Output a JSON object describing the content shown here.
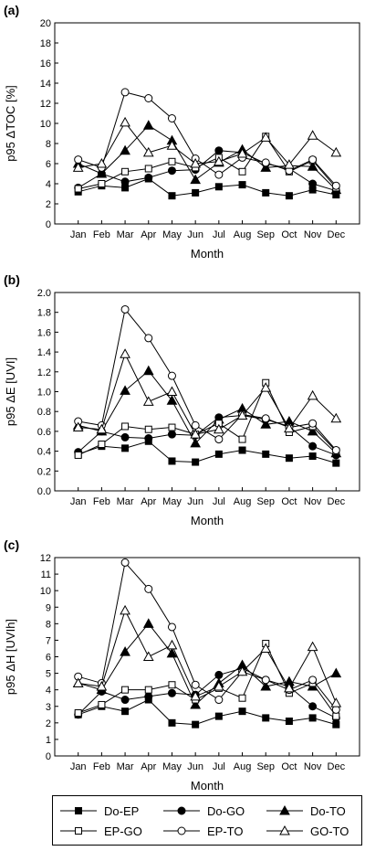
{
  "chart_data": [
    {
      "type": "line",
      "panel_label": "(a)",
      "ylabel": "p95 ΔTOC [%]",
      "xlabel": "Month",
      "categories": [
        "Jan",
        "Feb",
        "Mar",
        "Apr",
        "May",
        "Jun",
        "Jul",
        "Aug",
        "Sep",
        "Oct",
        "Nov",
        "Dec"
      ],
      "ylim": [
        0,
        20
      ],
      "yticks": [
        "0",
        "2",
        "4",
        "6",
        "8",
        "10",
        "12",
        "14",
        "16",
        "18",
        "20"
      ],
      "series": [
        {
          "name": "Do-EP",
          "values": [
            3.2,
            3.8,
            3.6,
            4.5,
            2.8,
            3.1,
            3.7,
            3.9,
            3.1,
            2.8,
            3.4,
            2.9
          ]
        },
        {
          "name": "Do-GO",
          "values": [
            3.6,
            5.0,
            4.2,
            4.6,
            5.3,
            5.4,
            7.3,
            7.1,
            6.0,
            5.5,
            4.0,
            3.3
          ]
        },
        {
          "name": "Do-TO",
          "values": [
            6.0,
            5.0,
            7.3,
            9.8,
            8.3,
            4.4,
            6.1,
            7.4,
            5.6,
            5.8,
            5.7,
            3.4
          ]
        },
        {
          "name": "EP-GO",
          "values": [
            3.5,
            4.0,
            5.2,
            5.5,
            6.2,
            5.6,
            6.6,
            5.2,
            8.7,
            5.2,
            6.3,
            3.6
          ]
        },
        {
          "name": "EP-TO",
          "values": [
            6.4,
            5.6,
            13.1,
            12.5,
            10.5,
            6.5,
            4.9,
            6.6,
            6.1,
            5.3,
            6.4,
            3.8
          ]
        },
        {
          "name": "GO-TO",
          "values": [
            5.6,
            6.0,
            10.1,
            7.1,
            7.8,
            6.0,
            6.2,
            7.0,
            8.6,
            5.9,
            8.8,
            7.1
          ]
        }
      ]
    },
    {
      "type": "line",
      "panel_label": "(b)",
      "ylabel": "p95 ΔE [UVI]",
      "xlabel": "Month",
      "categories": [
        "Jan",
        "Feb",
        "Mar",
        "Apr",
        "May",
        "Jun",
        "Jul",
        "Aug",
        "Sep",
        "Oct",
        "Nov",
        "Dec"
      ],
      "ylim": [
        0,
        2.0
      ],
      "yticks": [
        "0.0",
        "0.2",
        "0.4",
        "0.6",
        "0.8",
        "1.0",
        "1.2",
        "1.4",
        "1.6",
        "1.8",
        "2.0"
      ],
      "series": [
        {
          "name": "Do-EP",
          "values": [
            0.37,
            0.45,
            0.43,
            0.5,
            0.3,
            0.29,
            0.37,
            0.41,
            0.37,
            0.33,
            0.35,
            0.28
          ]
        },
        {
          "name": "Do-GO",
          "values": [
            0.39,
            0.6,
            0.54,
            0.53,
            0.57,
            0.56,
            0.74,
            0.76,
            0.72,
            0.65,
            0.45,
            0.36
          ]
        },
        {
          "name": "Do-TO",
          "values": [
            0.66,
            0.6,
            1.01,
            1.21,
            0.91,
            0.48,
            0.72,
            0.83,
            0.67,
            0.7,
            0.6,
            0.38
          ]
        },
        {
          "name": "EP-GO",
          "values": [
            0.36,
            0.47,
            0.65,
            0.62,
            0.64,
            0.57,
            0.68,
            0.52,
            1.09,
            0.59,
            0.65,
            0.4
          ]
        },
        {
          "name": "EP-TO",
          "values": [
            0.7,
            0.66,
            1.83,
            1.54,
            1.16,
            0.66,
            0.52,
            0.77,
            0.73,
            0.64,
            0.68,
            0.41
          ]
        },
        {
          "name": "GO-TO",
          "values": [
            0.64,
            0.62,
            1.38,
            0.9,
            1.0,
            0.57,
            0.62,
            0.76,
            1.04,
            0.63,
            0.96,
            0.73
          ]
        }
      ]
    },
    {
      "type": "line",
      "panel_label": "(c)",
      "ylabel": "p95 ΔH [UVIh]",
      "xlabel": "Month",
      "categories": [
        "Jan",
        "Feb",
        "Mar",
        "Apr",
        "May",
        "Jun",
        "Jul",
        "Aug",
        "Sep",
        "Oct",
        "Nov",
        "Dec"
      ],
      "ylim": [
        0,
        12
      ],
      "yticks": [
        "0",
        "1",
        "2",
        "3",
        "4",
        "5",
        "6",
        "7",
        "8",
        "9",
        "10",
        "11",
        "12"
      ],
      "series": [
        {
          "name": "Do-EP",
          "values": [
            2.5,
            3.0,
            2.7,
            3.4,
            2.0,
            1.9,
            2.4,
            2.7,
            2.3,
            2.1,
            2.3,
            1.9
          ]
        },
        {
          "name": "Do-GO",
          "values": [
            2.5,
            3.9,
            3.4,
            3.6,
            3.8,
            3.7,
            4.9,
            5.3,
            4.6,
            4.2,
            3.0,
            2.3
          ]
        },
        {
          "name": "Do-TO",
          "values": [
            4.4,
            4.0,
            6.3,
            8.0,
            6.2,
            3.1,
            4.4,
            5.5,
            4.2,
            4.5,
            4.2,
            5.0
          ]
        },
        {
          "name": "EP-GO",
          "values": [
            2.6,
            3.1,
            4.0,
            4.0,
            4.3,
            3.4,
            4.1,
            3.5,
            6.8,
            3.8,
            4.4,
            2.4
          ]
        },
        {
          "name": "EP-TO",
          "values": [
            4.8,
            4.4,
            11.7,
            10.1,
            7.8,
            4.3,
            3.4,
            5.1,
            4.6,
            4.0,
            4.6,
            2.8
          ]
        },
        {
          "name": "GO-TO",
          "values": [
            4.4,
            4.2,
            8.8,
            6.0,
            6.7,
            3.6,
            4.2,
            5.1,
            6.5,
            4.1,
            6.6,
            3.2
          ]
        }
      ]
    }
  ],
  "legend": {
    "placement": "bottom",
    "items": [
      {
        "name": "Do-EP",
        "marker": "square",
        "fill": "#000000"
      },
      {
        "name": "Do-GO",
        "marker": "circle",
        "fill": "#000000"
      },
      {
        "name": "Do-TO",
        "marker": "triangle",
        "fill": "#000000"
      },
      {
        "name": "EP-GO",
        "marker": "square",
        "fill": "#ffffff"
      },
      {
        "name": "EP-TO",
        "marker": "circle",
        "fill": "#ffffff"
      },
      {
        "name": "GO-TO",
        "marker": "triangle",
        "fill": "#ffffff"
      }
    ]
  },
  "colors": {
    "line": "#000000",
    "background": "#ffffff"
  }
}
